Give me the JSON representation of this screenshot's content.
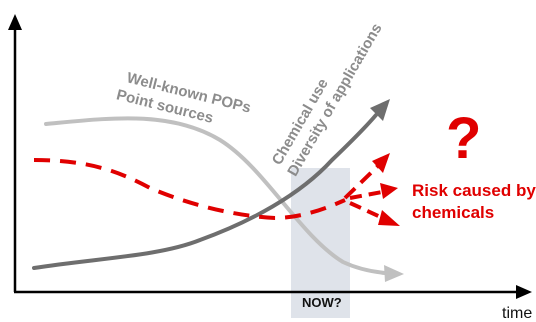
{
  "labels": {
    "pops_line1": "Well-known POPs",
    "pops_line2": "Point sources",
    "chem_line1": "Chemical use",
    "chem_line2": "Diversity of applications",
    "question_mark": "?",
    "risk_line1": "Risk caused by",
    "risk_line2": "chemicals",
    "now": "NOW?",
    "time_axis": "time"
  },
  "colors": {
    "axis": "#000000",
    "pops_curve": "#c0c0c0",
    "chem_curve": "#6e6e6e",
    "risk_curve": "#e00000",
    "now_band": "#dfe3ea",
    "grey_text": "#8c8c8c",
    "red_text": "#e00000"
  },
  "curves": {
    "pops": "decreasing",
    "chemical_use": "increasing",
    "risk": "dips then uncertain (three diverging arrows)"
  }
}
